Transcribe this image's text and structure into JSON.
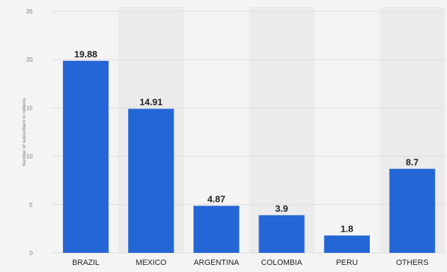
{
  "chart_data": {
    "type": "bar",
    "categories": [
      "BRAZIL",
      "MEXICO",
      "ARGENTINA",
      "COLOMBIA",
      "PERU",
      "OTHERS"
    ],
    "values": [
      19.88,
      14.91,
      4.87,
      3.9,
      1.8,
      8.7
    ],
    "value_labels": [
      "19.88",
      "14.91",
      "4.87",
      "3.9",
      "1.8",
      "8.7"
    ],
    "title": "",
    "xlabel": "",
    "ylabel": "Number of subscribers in millions",
    "ylim": [
      0,
      25
    ],
    "yticks": [
      "0",
      "5",
      "10",
      "15",
      "20",
      "25"
    ],
    "grid": true,
    "colors": {
      "bar": "#2566d6",
      "band": "#ebebeb",
      "grid": "#dcdcdc",
      "background": "#f4f4f4"
    }
  }
}
